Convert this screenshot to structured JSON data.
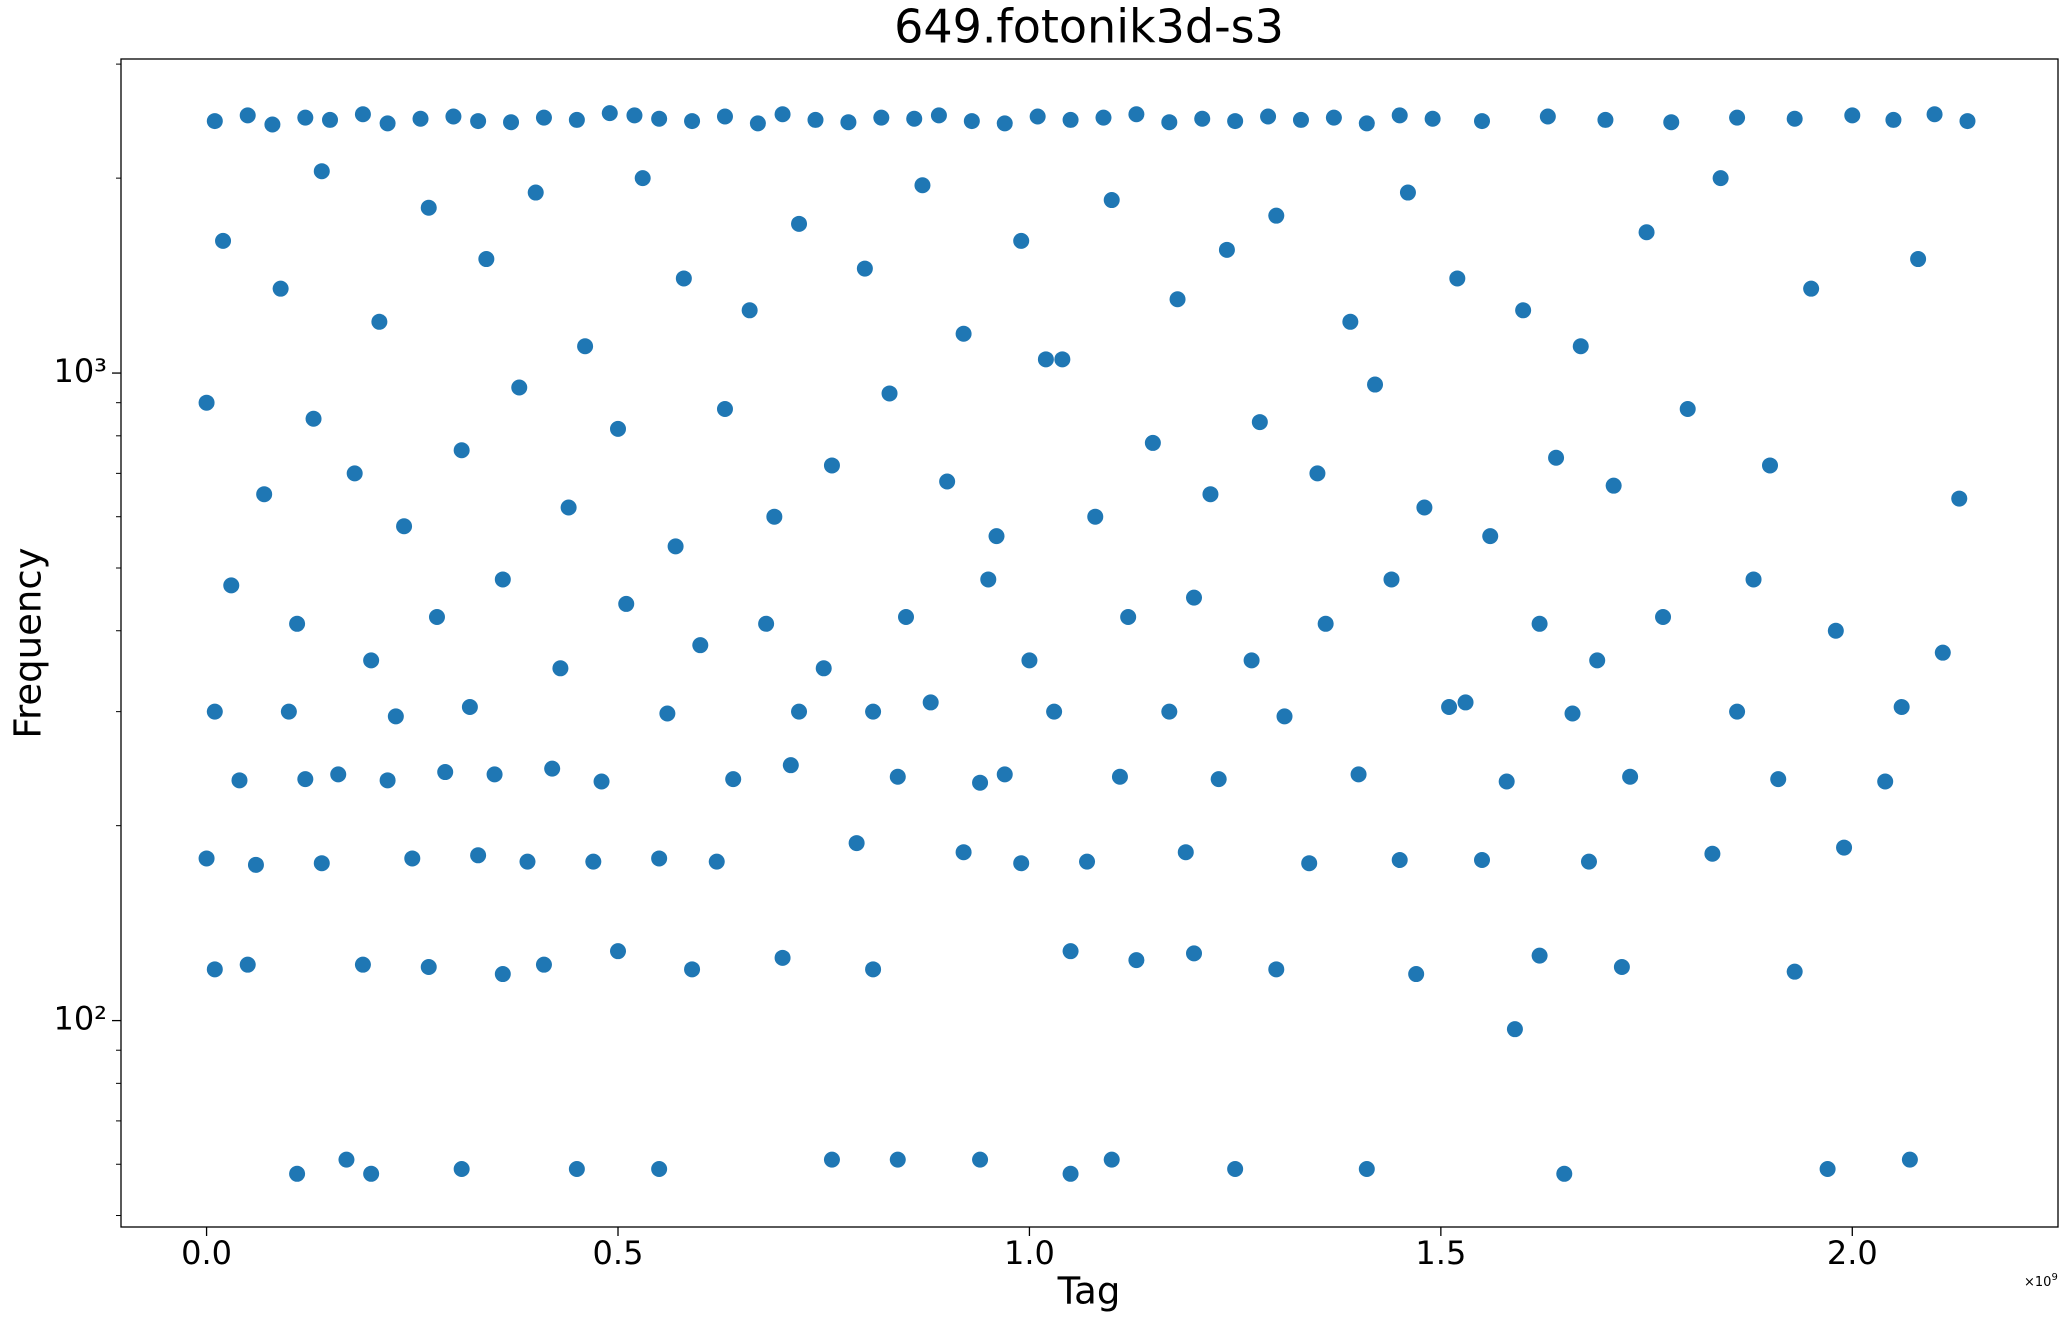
{
  "chart_data": {
    "type": "scatter",
    "title": "649.fotonik3d-s3",
    "xlabel": "Tag",
    "ylabel": "Frequency",
    "x_offset": {
      "base": "×10",
      "exponent": "9"
    },
    "color": "#1f77b4",
    "yscale": "log",
    "grid": false,
    "xlim": [
      -0.104,
      2.25
    ],
    "ylim": [
      48,
      3055
    ],
    "xticks": [
      {
        "value": 0,
        "label": "0.0"
      },
      {
        "value": 0.5,
        "label": "0.5"
      },
      {
        "value": 1,
        "label": "1.0"
      },
      {
        "value": 1.5,
        "label": "1.5"
      },
      {
        "value": 2,
        "label": "2.0"
      }
    ],
    "yticks": [
      {
        "value": 100,
        "label": "10²"
      },
      {
        "value": 1000,
        "label": "10³"
      }
    ],
    "yminor_ticks": [
      50,
      60,
      70,
      80,
      90,
      200,
      300,
      400,
      500,
      600,
      700,
      800,
      900,
      2000,
      3000
    ],
    "x": [
      0.01,
      0.05,
      0.08,
      0.12,
      0.15,
      0.19,
      0.22,
      0.26,
      0.3,
      0.33,
      0.37,
      0.41,
      0.45,
      0.49,
      0.52,
      0.55,
      0.59,
      0.63,
      0.67,
      0.7,
      0.74,
      0.78,
      0.82,
      0.86,
      0.89,
      0.93,
      0.97,
      1.01,
      1.05,
      1.09,
      1.13,
      1.17,
      1.21,
      1.25,
      1.29,
      1.33,
      1.37,
      1.41,
      1.45,
      1.49,
      1.55,
      1.63,
      1.7,
      1.78,
      1.86,
      1.93,
      2.0,
      2.05,
      2.1,
      2.14,
      0.02,
      0.09,
      0.14,
      0.21,
      0.27,
      0.34,
      0.4,
      0.46,
      0.53,
      0.58,
      0.66,
      0.72,
      0.8,
      0.87,
      0.92,
      0.99,
      1.04,
      1.1,
      1.18,
      1.24,
      1.3,
      1.39,
      1.46,
      1.52,
      1.6,
      1.67,
      1.75,
      1.84,
      1.95,
      2.08,
      0.0,
      0.07,
      0.13,
      0.18,
      0.24,
      0.31,
      0.38,
      0.44,
      0.5,
      0.57,
      0.63,
      0.69,
      0.76,
      0.83,
      0.9,
      0.96,
      1.02,
      1.08,
      1.15,
      1.22,
      1.28,
      1.35,
      1.42,
      1.48,
      1.56,
      1.64,
      1.71,
      1.8,
      1.9,
      2.13,
      0.03,
      0.11,
      0.2,
      0.28,
      0.36,
      0.43,
      0.51,
      0.6,
      0.68,
      0.75,
      0.85,
      0.95,
      1.0,
      1.12,
      1.2,
      1.27,
      1.36,
      1.44,
      1.53,
      1.62,
      1.69,
      1.77,
      1.88,
      1.98,
      2.11,
      0.01,
      0.1,
      0.23,
      0.32,
      0.56,
      0.72,
      0.81,
      0.88,
      1.03,
      1.17,
      1.31,
      1.51,
      1.66,
      1.86,
      2.06,
      0.04,
      0.12,
      0.16,
      0.22,
      0.29,
      0.35,
      0.42,
      0.48,
      0.64,
      0.71,
      0.84,
      0.94,
      0.97,
      1.11,
      1.23,
      1.4,
      1.58,
      1.73,
      1.91,
      2.04,
      0.0,
      0.06,
      0.14,
      0.25,
      0.33,
      0.39,
      0.47,
      0.55,
      0.62,
      0.79,
      0.92,
      0.99,
      1.07,
      1.19,
      1.34,
      1.45,
      1.55,
      1.68,
      1.83,
      1.99,
      0.01,
      0.05,
      0.19,
      0.27,
      0.36,
      0.41,
      0.5,
      0.59,
      0.7,
      0.81,
      1.05,
      1.13,
      1.2,
      1.3,
      1.47,
      1.62,
      1.72,
      1.93,
      1.59,
      0.11,
      0.17,
      0.2,
      0.31,
      0.45,
      0.55,
      0.76,
      0.84,
      0.94,
      1.05,
      1.1,
      1.25,
      1.41,
      1.65,
      1.97,
      2.07
    ],
    "values": [
      2450,
      2500,
      2420,
      2480,
      2460,
      2510,
      2430,
      2470,
      2490,
      2450,
      2440,
      2480,
      2460,
      2520,
      2500,
      2470,
      2450,
      2490,
      2430,
      2510,
      2460,
      2440,
      2480,
      2470,
      2500,
      2450,
      2430,
      2490,
      2460,
      2480,
      2510,
      2440,
      2470,
      2450,
      2490,
      2460,
      2480,
      2430,
      2500,
      2470,
      2450,
      2490,
      2460,
      2440,
      2480,
      2470,
      2500,
      2460,
      2510,
      2450,
      1600,
      1350,
      2050,
      1200,
      1800,
      1500,
      1900,
      1100,
      2000,
      1400,
      1250,
      1700,
      1450,
      1950,
      1150,
      1600,
      1050,
      1850,
      1300,
      1550,
      1750,
      1200,
      1900,
      1400,
      1250,
      1100,
      1650,
      2000,
      1350,
      1500,
      900,
      650,
      850,
      700,
      580,
      760,
      950,
      620,
      820,
      540,
      880,
      600,
      720,
      930,
      680,
      560,
      1050,
      600,
      780,
      650,
      840,
      700,
      960,
      620,
      560,
      740,
      670,
      880,
      720,
      640,
      470,
      410,
      360,
      420,
      480,
      350,
      440,
      380,
      410,
      350,
      420,
      480,
      360,
      420,
      450,
      360,
      410,
      480,
      310,
      410,
      360,
      420,
      480,
      400,
      370,
      300,
      300,
      295,
      305,
      298,
      300,
      300,
      310,
      300,
      300,
      295,
      305,
      298,
      300,
      305,
      235,
      236,
      240,
      235,
      242,
      240,
      245,
      234,
      236,
      248,
      238,
      233,
      240,
      238,
      236,
      240,
      234,
      238,
      236,
      234,
      178,
      174,
      175,
      178,
      180,
      176,
      176,
      178,
      176,
      188,
      182,
      175,
      176,
      182,
      175,
      177,
      177,
      176,
      181,
      185,
      120,
      122,
      122,
      121,
      118,
      122,
      128,
      120,
      125,
      120,
      128,
      124,
      127,
      120,
      118,
      126,
      121,
      119,
      97,
      58,
      61,
      58,
      59,
      59,
      59,
      61,
      61,
      61,
      58,
      61,
      59,
      59,
      58,
      59,
      61
    ]
  }
}
